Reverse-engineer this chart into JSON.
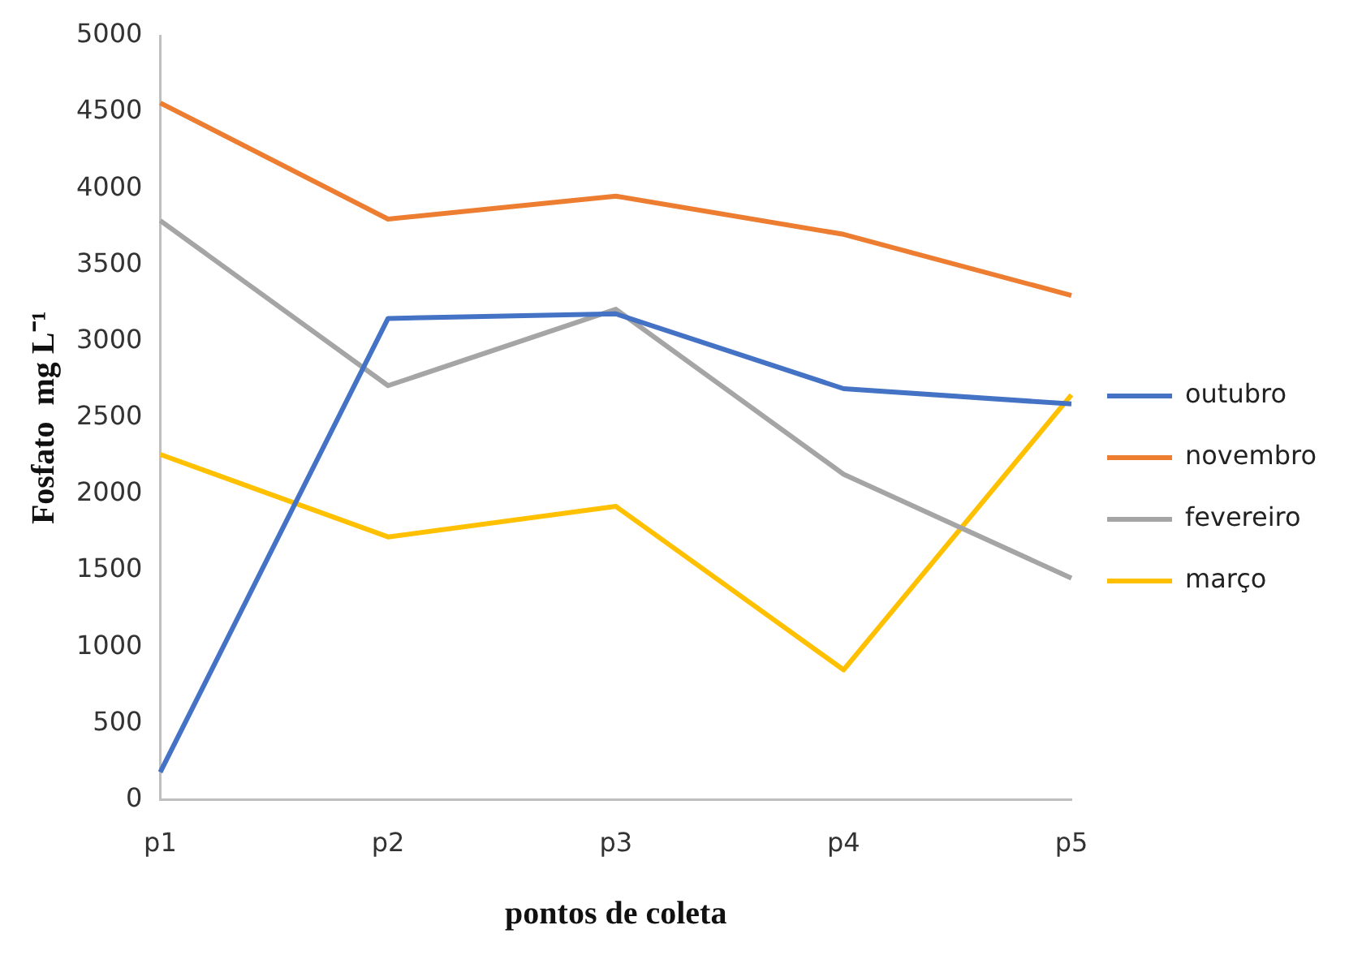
{
  "chart_data": {
    "type": "line",
    "xlabel": "pontos de coleta",
    "ylabel": "Fosfato  mg L⁻¹",
    "categories": [
      "p1",
      "p2",
      "p3",
      "p4",
      "p5"
    ],
    "series": [
      {
        "name": "outubro",
        "color": "#4472c4",
        "values": [
          180,
          3150,
          3180,
          2690,
          2590
        ]
      },
      {
        "name": "novembro",
        "color": "#ed7d31",
        "values": [
          4560,
          3800,
          3950,
          3700,
          3300
        ]
      },
      {
        "name": "fevereiro",
        "color": "#a5a5a5",
        "values": [
          3790,
          2710,
          3210,
          2130,
          1450
        ]
      },
      {
        "name": "março",
        "color": "#ffc000",
        "values": [
          2260,
          1720,
          1920,
          850,
          2650
        ]
      }
    ],
    "ylim": [
      0,
      5000
    ],
    "yticks": [
      0,
      500,
      1000,
      1500,
      2000,
      2500,
      3000,
      3500,
      4000,
      4500,
      5000
    ],
    "grid": false,
    "legend": "right",
    "marker": "none",
    "line_style": "solid"
  }
}
